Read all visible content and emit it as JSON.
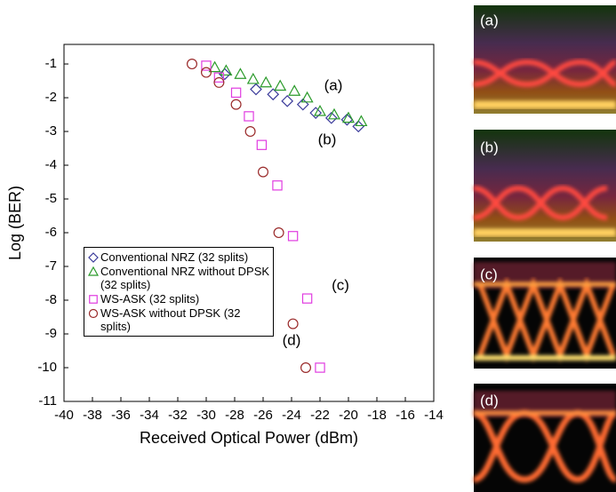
{
  "chart_data": {
    "type": "scatter",
    "x_label": "Received Optical Power (dBm)",
    "y_label": "Log (BER)",
    "xlim": [
      -40,
      -14
    ],
    "xticks": [
      -40,
      -38,
      -36,
      -34,
      -32,
      -30,
      -28,
      -26,
      -24,
      -22,
      -20,
      -18,
      -16,
      -14
    ],
    "ylim": [
      -11,
      -0.42
    ],
    "yticks": [
      -1,
      -2,
      -3,
      -4,
      -5,
      -6,
      -7,
      -8,
      -9,
      -10,
      -11
    ],
    "series": [
      {
        "name": "Conventional NRZ (32 splits)",
        "color": "#3a3a9a",
        "marker": "diamond",
        "x": [
          -28.7,
          -26.5,
          -25.3,
          -24.3,
          -23.2,
          -22.3,
          -21.2,
          -20.1,
          -19.3
        ],
        "values": [
          -1.3,
          -1.75,
          -1.9,
          -2.1,
          -2.2,
          -2.45,
          -2.6,
          -2.65,
          -2.85
        ]
      },
      {
        "name": "Conventional NRZ without DPSK (32 splits)",
        "color": "#2a9a2a",
        "marker": "triangle",
        "x": [
          -29.4,
          -28.6,
          -27.6,
          -26.7,
          -25.8,
          -24.8,
          -23.8,
          -22.9,
          -22.0,
          -21.0,
          -20.0,
          -19.1
        ],
        "values": [
          -1.1,
          -1.2,
          -1.3,
          -1.45,
          -1.55,
          -1.65,
          -1.8,
          -2.0,
          -2.4,
          -2.5,
          -2.6,
          -2.7
        ]
      },
      {
        "name": "WS-ASK (32 splits)",
        "color": "#e03ce0",
        "marker": "square",
        "x": [
          -30.0,
          -29.1,
          -27.9,
          -27.0,
          -26.1,
          -25.0,
          -23.9,
          -22.9,
          -22.0
        ],
        "values": [
          -1.05,
          -1.4,
          -1.85,
          -2.55,
          -3.4,
          -4.6,
          -6.1,
          -7.95,
          -10.0
        ]
      },
      {
        "name": "WS-ASK without DPSK (32 splits)",
        "color": "#9a2a2a",
        "marker": "circle",
        "x": [
          -31.0,
          -30.0,
          -29.1,
          -27.9,
          -26.9,
          -26.0,
          -24.9,
          -23.9,
          -23.0
        ],
        "values": [
          -1.0,
          -1.25,
          -1.55,
          -2.2,
          -3.0,
          -4.2,
          -6.0,
          -8.7,
          -10.0
        ]
      }
    ],
    "annotations": [
      "(a)",
      "(b)",
      "(c)",
      "(d)"
    ]
  },
  "panel_labels": [
    "(a)",
    "(b)",
    "(c)",
    "(d)"
  ]
}
